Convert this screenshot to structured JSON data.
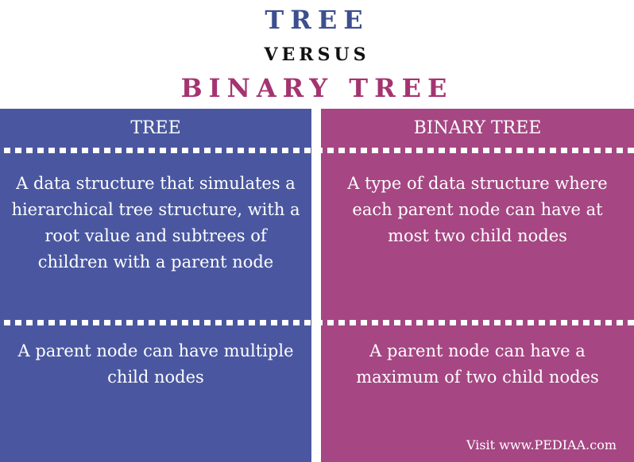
{
  "titles": {
    "tree": "TREE",
    "versus": "VERSUS",
    "binary_tree": "BINARY TREE"
  },
  "colors": {
    "tree_accent": "#4a57a0",
    "binary_tree_accent": "#a64683",
    "tree_title": "#3d4f8f",
    "binary_title": "#a4346f"
  },
  "columns": {
    "tree": {
      "header": "TREE",
      "rows": [
        "A  data structure that simulates a hierarchical tree structure, with a root value and subtrees of children with a parent node",
        "A parent node can have multiple child nodes"
      ]
    },
    "binary_tree": {
      "header": "BINARY TREE",
      "rows": [
        "A type of data structure where each parent node can have at most two child nodes",
        "A parent node can have a maximum of two child nodes"
      ]
    }
  },
  "footer": "Visit www.PEDIAA.com"
}
